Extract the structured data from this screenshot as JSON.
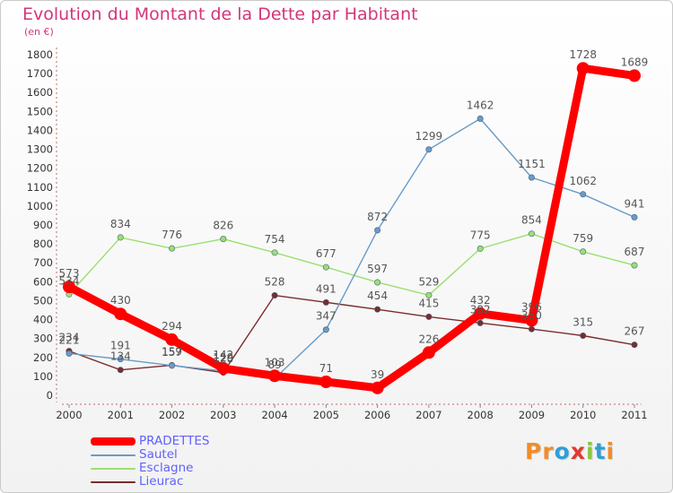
{
  "chart_data": {
    "type": "line",
    "title": "Evolution du Montant de la Dette par Habitant",
    "subtitle": "(en €)",
    "x": [
      "2000",
      "2001",
      "2002",
      "2003",
      "2004",
      "2005",
      "2006",
      "2007",
      "2008",
      "2009",
      "2010",
      "2011"
    ],
    "ylim": [
      0,
      1800
    ],
    "yticks": [
      0,
      100,
      200,
      300,
      400,
      500,
      600,
      700,
      800,
      900,
      1000,
      1100,
      1200,
      1300,
      1400,
      1500,
      1600,
      1700,
      1800
    ],
    "grid": false,
    "legend_position": "bottom-left",
    "series": [
      {
        "name": "PRADETTES",
        "color": "#ff0000",
        "values": [
          573,
          430,
          294,
          142,
          103,
          71,
          39,
          226,
          432,
          396,
          1728,
          1689
        ]
      },
      {
        "name": "Sautel",
        "color": "#6a9bc8",
        "values": [
          221,
          191,
          157,
          129,
          89,
          347,
          872,
          1299,
          1462,
          1151,
          1062,
          941
        ]
      },
      {
        "name": "Esclagne",
        "color": "#99e070",
        "values": [
          534,
          834,
          776,
          826,
          754,
          677,
          597,
          529,
          775,
          854,
          759,
          687
        ]
      },
      {
        "name": "Lieurac",
        "color": "#7a2c2c",
        "values": [
          234,
          134,
          159,
          120,
          528,
          491,
          454,
          415,
          382,
          350,
          315,
          267
        ]
      }
    ]
  },
  "logo": {
    "text": "Proxiti",
    "letters": [
      {
        "ch": "P",
        "color": "#f28c28"
      },
      {
        "ch": "r",
        "color": "#f28c28"
      },
      {
        "ch": "o",
        "color": "#2f9fd8"
      },
      {
        "ch": "x",
        "color": "#e03a2f"
      },
      {
        "ch": "i",
        "color": "#8cc63f"
      },
      {
        "ch": "t",
        "color": "#2f9fd8"
      },
      {
        "ch": "i",
        "color": "#f28c28"
      }
    ]
  }
}
